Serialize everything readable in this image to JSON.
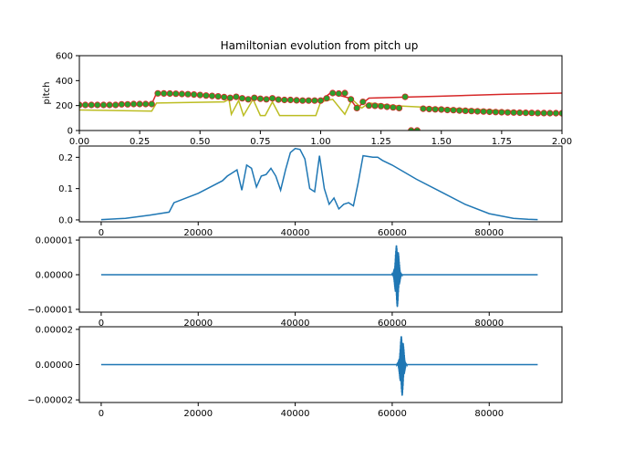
{
  "chart_data": [
    {
      "type": "line",
      "title": "Hamiltonian evolution from pitch up",
      "xlabel": "",
      "ylabel": "pitch",
      "xlim": [
        0,
        2
      ],
      "ylim": [
        0,
        600
      ],
      "xticks": [
        "0.00",
        "0.25",
        "0.50",
        "0.75",
        "1.00",
        "1.25",
        "1.50",
        "1.75",
        "2.00"
      ],
      "yticks": [
        "0",
        "200",
        "400",
        "600"
      ],
      "series": [
        {
          "color": "#d62728",
          "style": "line",
          "x": [
            0.0,
            0.1,
            0.2,
            0.3,
            0.32,
            0.4,
            0.5,
            0.6,
            0.65,
            0.7,
            0.75,
            0.8,
            0.9,
            1.0,
            1.04,
            1.08,
            1.12,
            1.15,
            1.2,
            1.3,
            1.5,
            1.75,
            2.0
          ],
          "y": [
            205,
            205,
            210,
            212,
            300,
            295,
            290,
            270,
            260,
            255,
            260,
            250,
            245,
            240,
            300,
            280,
            260,
            180,
            260,
            265,
            275,
            290,
            300
          ]
        },
        {
          "color": "#bcbd22",
          "style": "line",
          "x": [
            0.0,
            0.3,
            0.32,
            0.6,
            0.62,
            0.63,
            0.66,
            0.68,
            0.72,
            0.75,
            0.77,
            0.8,
            0.83,
            0.98,
            1.0,
            1.05,
            1.1,
            1.13,
            1.17,
            1.2,
            1.3,
            1.5,
            1.75,
            2.0
          ],
          "y": [
            165,
            155,
            220,
            230,
            250,
            130,
            240,
            120,
            250,
            120,
            120,
            230,
            120,
            120,
            230,
            250,
            130,
            250,
            180,
            220,
            200,
            180,
            160,
            140
          ]
        },
        {
          "color": "#2ca02c",
          "style": "markers",
          "x": [
            0.0,
            0.025,
            0.05,
            0.075,
            0.1,
            0.125,
            0.15,
            0.175,
            0.2,
            0.225,
            0.25,
            0.275,
            0.3,
            0.325,
            0.35,
            0.375,
            0.4,
            0.425,
            0.45,
            0.475,
            0.5,
            0.525,
            0.55,
            0.575,
            0.6,
            0.625,
            0.65,
            0.675,
            0.7,
            0.725,
            0.75,
            0.775,
            0.8,
            0.825,
            0.85,
            0.875,
            0.9,
            0.925,
            0.95,
            0.975,
            1.0,
            1.025,
            1.05,
            1.075,
            1.1,
            1.125,
            1.15,
            1.175,
            1.2,
            1.225,
            1.25,
            1.275,
            1.3,
            1.325,
            1.35,
            1.375,
            1.4,
            1.425,
            1.45,
            1.475,
            1.5,
            1.525,
            1.55,
            1.575,
            1.6,
            1.625,
            1.65,
            1.675,
            1.7,
            1.725,
            1.75,
            1.775,
            1.8,
            1.825,
            1.85,
            1.875,
            1.9,
            1.925,
            1.95,
            1.975,
            2.0
          ],
          "y": [
            205,
            205,
            205,
            205,
            205,
            205,
            205,
            210,
            210,
            212,
            212,
            212,
            212,
            298,
            297,
            296,
            295,
            293,
            291,
            288,
            285,
            280,
            277,
            274,
            268,
            262,
            270,
            258,
            250,
            262,
            255,
            250,
            258,
            248,
            245,
            245,
            242,
            240,
            240,
            240,
            240,
            258,
            300,
            296,
            300,
            250,
            180,
            230,
            200,
            198,
            195,
            190,
            185,
            180,
            270,
            0,
            0,
            175,
            172,
            170,
            168,
            165,
            163,
            160,
            158,
            156,
            154,
            152,
            150,
            148,
            146,
            145,
            144,
            143,
            142,
            141,
            140,
            140,
            139,
            139,
            138
          ]
        }
      ]
    },
    {
      "type": "line",
      "title": "",
      "xlabel": "",
      "ylabel": "",
      "xlim": [
        -4500,
        95000
      ],
      "ylim": [
        -0.006,
        0.236
      ],
      "xticks": [
        "0",
        "20000",
        "40000",
        "60000",
        "80000"
      ],
      "yticks": [
        "0.0",
        "0.1",
        "0.2"
      ],
      "series": [
        {
          "color": "#1f77b4",
          "x": [
            0,
            5000,
            10000,
            14000,
            15000,
            20000,
            25000,
            26000,
            27000,
            28000,
            29000,
            30000,
            31000,
            32000,
            33000,
            34000,
            35000,
            36000,
            37000,
            38000,
            39000,
            40000,
            41000,
            42000,
            43000,
            44000,
            45000,
            46000,
            47000,
            48000,
            49000,
            50000,
            51000,
            52000,
            53000,
            54000,
            56000,
            57000,
            58000,
            60000,
            65000,
            70000,
            75000,
            80000,
            85000,
            88000,
            90000
          ],
          "y": [
            0.001,
            0.005,
            0.015,
            0.025,
            0.055,
            0.085,
            0.125,
            0.14,
            0.15,
            0.16,
            0.095,
            0.175,
            0.165,
            0.105,
            0.14,
            0.145,
            0.165,
            0.14,
            0.095,
            0.16,
            0.215,
            0.228,
            0.225,
            0.195,
            0.1,
            0.09,
            0.205,
            0.1,
            0.05,
            0.07,
            0.035,
            0.05,
            0.055,
            0.045,
            0.12,
            0.205,
            0.2,
            0.2,
            0.19,
            0.175,
            0.13,
            0.09,
            0.05,
            0.02,
            0.005,
            0.002,
            0.001
          ]
        }
      ]
    },
    {
      "type": "line",
      "title": "",
      "xlabel": "",
      "ylabel": "",
      "xlim": [
        -4500,
        95000
      ],
      "ylim": [
        -1.08e-05,
        1.08e-05
      ],
      "xticks": [
        "0",
        "20000",
        "40000",
        "60000",
        "80000"
      ],
      "yticks": [
        "−0.00001",
        "0.00000",
        "0.00001"
      ],
      "series": [
        {
          "color": "#1f77b4",
          "x": [
            0,
            90000
          ],
          "y": [
            0,
            0
          ],
          "burst": {
            "center": 61000,
            "halfwidth": 1100,
            "amplitude": 9.5e-06
          }
        }
      ]
    },
    {
      "type": "line",
      "title": "",
      "xlabel": "",
      "ylabel": "",
      "xlim": [
        -4500,
        95000
      ],
      "ylim": [
        -2.15e-05,
        2.15e-05
      ],
      "xticks": [
        "0",
        "20000",
        "40000",
        "60000",
        "80000"
      ],
      "yticks": [
        "−0.00002",
        "0.00000",
        "0.00002"
      ],
      "series": [
        {
          "color": "#1f77b4",
          "x": [
            0,
            90000
          ],
          "y": [
            0,
            0
          ],
          "burst": {
            "center": 62000,
            "halfwidth": 1100,
            "amplitude": 1.8e-05
          }
        }
      ]
    }
  ]
}
